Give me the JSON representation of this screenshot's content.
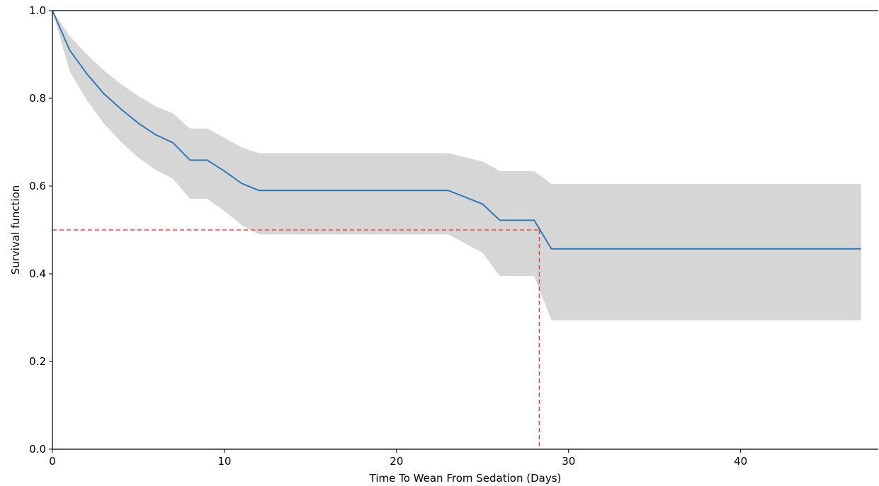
{
  "chart_data": {
    "type": "line",
    "title": "",
    "xlabel": "Time To Wean From Sedation (Days)",
    "ylabel": "Survival function",
    "xlim": [
      0,
      48
    ],
    "ylim": [
      0,
      1
    ],
    "x_ticks": [
      "0",
      "10",
      "20",
      "30",
      "40"
    ],
    "y_ticks": [
      "0.0",
      "0.2",
      "0.4",
      "0.6",
      "0.8",
      "1.0"
    ],
    "grid": false,
    "legend": "none",
    "series": [
      {
        "color": "#2f7ab8",
        "x": [
          0,
          1,
          2,
          3,
          4,
          5,
          6,
          7,
          8,
          9,
          10,
          11,
          12,
          23,
          25,
          26,
          28,
          29,
          47
        ],
        "y": [
          1.0,
          0.91,
          0.856,
          0.81,
          0.775,
          0.743,
          0.717,
          0.699,
          0.659,
          0.659,
          0.634,
          0.606,
          0.59,
          0.59,
          0.559,
          0.522,
          0.522,
          0.457,
          0.457
        ],
        "ci_upper": [
          1.0,
          0.942,
          0.9,
          0.863,
          0.832,
          0.805,
          0.782,
          0.766,
          0.731,
          0.731,
          0.71,
          0.688,
          0.675,
          0.675,
          0.656,
          0.634,
          0.634,
          0.605,
          0.605
        ],
        "ci_lower": [
          1.0,
          0.862,
          0.796,
          0.742,
          0.7,
          0.665,
          0.637,
          0.617,
          0.571,
          0.571,
          0.543,
          0.511,
          0.49,
          0.49,
          0.448,
          0.395,
          0.395,
          0.294,
          0.294
        ]
      }
    ],
    "ci_color": "#d6d6d6",
    "median_line": {
      "x": 28.3,
      "y": 0.5,
      "color": "#e8474a"
    }
  }
}
